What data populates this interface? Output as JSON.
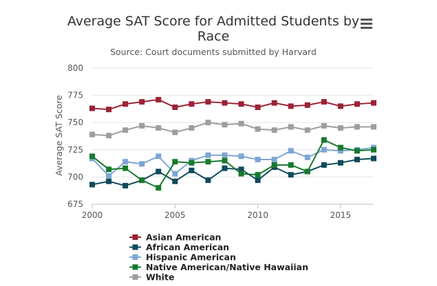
{
  "chart_data": {
    "type": "line",
    "title": "Average SAT Score for Admitted Students by Race",
    "title_lines": [
      "Average SAT Score for Admitted Students by",
      "Race"
    ],
    "subtitle": "Source: Court documents submitted by Harvard",
    "xlabel": "",
    "ylabel": "Average SAT Score",
    "xlim": [
      2000,
      2017
    ],
    "ylim": [
      675,
      800
    ],
    "x_ticks": [
      2000,
      2005,
      2010,
      2015
    ],
    "y_ticks": [
      675,
      700,
      725,
      750,
      775,
      800
    ],
    "grid": "horizontal",
    "legend_position": "bottom",
    "x": [
      2000,
      2001,
      2002,
      2003,
      2004,
      2005,
      2006,
      2007,
      2008,
      2009,
      2010,
      2011,
      2012,
      2013,
      2014,
      2015,
      2016,
      2017
    ],
    "series": [
      {
        "name": "Asian American",
        "color": "#9b2335",
        "values": [
          763,
          762,
          767,
          769,
          771,
          764,
          767,
          769,
          768,
          767,
          764,
          768,
          765,
          766,
          769,
          765,
          767,
          768
        ]
      },
      {
        "name": "African American",
        "color": "#0f4a5c",
        "values": [
          693,
          696,
          692,
          697,
          705,
          696,
          706,
          697,
          708,
          707,
          697,
          709,
          702,
          705,
          711,
          713,
          716,
          717
        ]
      },
      {
        "name": "Hispanic American",
        "color": "#7ea6d4",
        "values": [
          717,
          701,
          714,
          712,
          719,
          703,
          715,
          720,
          720,
          719,
          716,
          716,
          724,
          718,
          725,
          724,
          725,
          727
        ]
      },
      {
        "name": "Native American/Native Hawaiian",
        "color": "#177a2e",
        "values": [
          719,
          707,
          708,
          697,
          690,
          714,
          713,
          714,
          715,
          703,
          702,
          711,
          711,
          705,
          734,
          727,
          724,
          725
        ]
      },
      {
        "name": "White",
        "color": "#9e9e9e",
        "values": [
          739,
          738,
          743,
          747,
          745,
          741,
          745,
          750,
          748,
          749,
          744,
          743,
          746,
          743,
          747,
          745,
          746,
          746
        ]
      }
    ]
  }
}
